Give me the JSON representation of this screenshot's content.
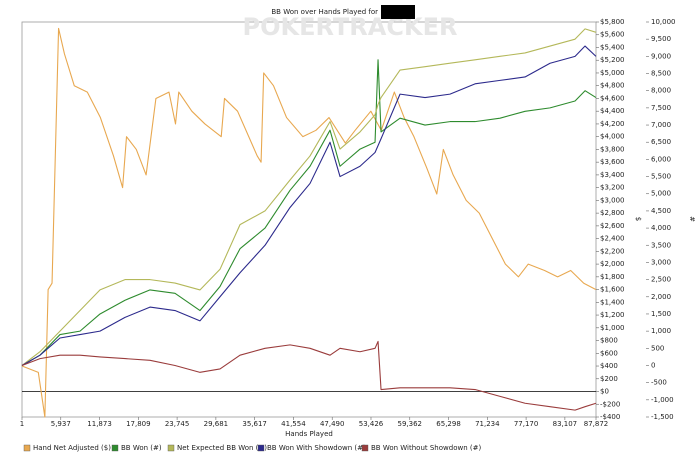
{
  "chart_data": {
    "type": "line",
    "title": "BB Won over Hands Played for",
    "watermark": "POKERTRACKER",
    "x_label": "Hands Played",
    "y_label": "$",
    "y2_label": "#",
    "xlim": [
      1,
      87872
    ],
    "xticks": [
      1,
      {
        "value": 5937,
        "label": "5,937"
      },
      {
        "value": 11873,
        "label": "11,873"
      },
      {
        "value": 17809,
        "label": "17,809"
      },
      {
        "value": 23745,
        "label": "23,745"
      },
      {
        "value": 29681,
        "label": "29,681"
      },
      {
        "value": 35617,
        "label": "35,617"
      },
      {
        "value": 41554,
        "label": "41,554"
      },
      {
        "value": 47490,
        "label": "47,490"
      },
      {
        "value": 53426,
        "label": "53,426"
      },
      {
        "value": 59362,
        "label": "59,362"
      },
      {
        "value": 65298,
        "label": "65,298"
      },
      {
        "value": 71234,
        "label": "71,234"
      },
      {
        "value": 77170,
        "label": "77,170"
      },
      {
        "value": 83107,
        "label": "83,107"
      },
      {
        "value": 87872,
        "label": "87,872"
      }
    ],
    "ylim": [
      -400,
      5800
    ],
    "yticks": [
      {
        "value": -400,
        "label": "-$400"
      },
      {
        "value": -200,
        "label": "-$200"
      },
      {
        "value": 0,
        "label": "$0"
      },
      {
        "value": 200,
        "label": "$200"
      },
      {
        "value": 400,
        "label": "$400"
      },
      {
        "value": 600,
        "label": "$600"
      },
      {
        "value": 800,
        "label": "$800"
      },
      {
        "value": 1000,
        "label": "$1,000"
      },
      {
        "value": 1200,
        "label": "$1,200"
      },
      {
        "value": 1400,
        "label": "$1,400"
      },
      {
        "value": 1600,
        "label": "$1,600"
      },
      {
        "value": 1800,
        "label": "$1,800"
      },
      {
        "value": 2000,
        "label": "$2,000"
      },
      {
        "value": 2200,
        "label": "$2,200"
      },
      {
        "value": 2400,
        "label": "$2,400"
      },
      {
        "value": 2600,
        "label": "$2,600"
      },
      {
        "value": 2800,
        "label": "$2,800"
      },
      {
        "value": 3000,
        "label": "$3,000"
      },
      {
        "value": 3200,
        "label": "$3,200"
      },
      {
        "value": 3400,
        "label": "$3,400"
      },
      {
        "value": 3600,
        "label": "$3,600"
      },
      {
        "value": 3800,
        "label": "$3,800"
      },
      {
        "value": 4000,
        "label": "$4,000"
      },
      {
        "value": 4200,
        "label": "$4,200"
      },
      {
        "value": 4400,
        "label": "$4,400"
      },
      {
        "value": 4600,
        "label": "$4,600"
      },
      {
        "value": 4800,
        "label": "$4,800"
      },
      {
        "value": 5000,
        "label": "$5,000"
      },
      {
        "value": 5200,
        "label": "$5,200"
      },
      {
        "value": 5400,
        "label": "$5,400"
      },
      {
        "value": 5600,
        "label": "$5,600"
      },
      {
        "value": 5800,
        "label": "$5,800"
      }
    ],
    "y2lim": [
      -1500,
      10000
    ],
    "y2ticks": [
      {
        "value": -1500,
        "label": "-1,500"
      },
      {
        "value": -1000,
        "label": "-1,000"
      },
      -500,
      0,
      500,
      {
        "value": 1000,
        "label": "1,000"
      },
      {
        "value": 1500,
        "label": "1,500"
      },
      {
        "value": 2000,
        "label": "2,000"
      },
      {
        "value": 2500,
        "label": "2,500"
      },
      {
        "value": 3000,
        "label": "3,000"
      },
      {
        "value": 3500,
        "label": "3,500"
      },
      {
        "value": 4000,
        "label": "4,000"
      },
      {
        "value": 4500,
        "label": "4,500"
      },
      {
        "value": 5000,
        "label": "5,000"
      },
      {
        "value": 5500,
        "label": "5,500"
      },
      {
        "value": 6000,
        "label": "6,000"
      },
      {
        "value": 6500,
        "label": "6,500"
      },
      {
        "value": 7000,
        "label": "7,000"
      },
      {
        "value": 7500,
        "label": "7,500"
      },
      {
        "value": 8000,
        "label": "8,000"
      },
      {
        "value": 8500,
        "label": "8,500"
      },
      {
        "value": 9000,
        "label": "9,000"
      },
      {
        "value": 9500,
        "label": "9,500"
      },
      {
        "value": 10000,
        "label": "10,000"
      }
    ],
    "grid": false,
    "legend": "bottom",
    "series": [
      {
        "name": "Hand Net Adjusted ($)",
        "color": "#e8a850",
        "axis": "y",
        "x": [
          1,
          2500,
          3500,
          4000,
          4600,
          5600,
          6500,
          8000,
          10000,
          12000,
          14000,
          15400,
          16000,
          17500,
          19000,
          20500,
          22500,
          23500,
          24000,
          26000,
          28000,
          30500,
          31000,
          33000,
          36000,
          36600,
          37000,
          38500,
          40500,
          43000,
          45000,
          47000,
          49500,
          51000,
          53400,
          55000,
          57000,
          58500,
          60000,
          62000,
          63500,
          64500,
          66000,
          68000,
          70000,
          72000,
          74000,
          76000,
          77500,
          80000,
          82000,
          84000,
          86000,
          87872
        ],
        "values": [
          400,
          300,
          -400,
          1600,
          1700,
          5700,
          5300,
          4800,
          4700,
          4300,
          3700,
          3200,
          4000,
          3800,
          3400,
          4600,
          4700,
          4200,
          4700,
          4400,
          4200,
          4000,
          4600,
          4400,
          3700,
          3600,
          5000,
          4800,
          4300,
          4000,
          4100,
          4300,
          3900,
          4100,
          4400,
          4100,
          4700,
          4300,
          4000,
          3500,
          3100,
          3800,
          3400,
          3000,
          2800,
          2400,
          2000,
          1800,
          2000,
          1900,
          1800,
          1900,
          1700,
          1600
        ]
      },
      {
        "name": "BB Won (#)",
        "color": "#2e8b2e",
        "axis": "y2",
        "x": [
          1,
          2757,
          5819,
          8881,
          11943,
          15771,
          19598,
          23426,
          27253,
          30315,
          33377,
          37205,
          41032,
          44094,
          47156,
          48687,
          51749,
          54046,
          54505,
          54964,
          57873,
          61700,
          65528,
          69355,
          73183,
          77010,
          80838,
          84665,
          86196,
          87872
        ],
        "values": [
          0,
          300,
          900,
          1000,
          1500,
          1900,
          2200,
          2100,
          1600,
          2300,
          3400,
          4000,
          5100,
          5800,
          6850,
          5800,
          6300,
          6500,
          8900,
          6800,
          7200,
          7000,
          7100,
          7100,
          7200,
          7400,
          7500,
          7700,
          8000,
          7800
        ]
      },
      {
        "name": "Net Expected BB Won (#)",
        "color": "#b4b85a",
        "axis": "y2",
        "x": [
          1,
          2757,
          5819,
          8881,
          11943,
          15771,
          19598,
          23426,
          27253,
          30315,
          33377,
          37205,
          41032,
          44094,
          47156,
          48687,
          51749,
          54046,
          54505,
          54964,
          57873,
          61700,
          65528,
          69355,
          73183,
          77010,
          80838,
          84665,
          86196,
          87872
        ],
        "values": [
          0,
          400,
          1000,
          1600,
          2200,
          2500,
          2500,
          2400,
          2200,
          2800,
          4100,
          4500,
          5400,
          6100,
          7100,
          6300,
          6800,
          7300,
          7600,
          7800,
          8600,
          8700,
          8800,
          8900,
          9000,
          9100,
          9300,
          9500,
          9800,
          9700
        ]
      },
      {
        "name": "BB Won With Showdown (#)",
        "color": "#2c2a8c",
        "axis": "y2",
        "x": [
          1,
          2757,
          5819,
          8881,
          11943,
          15771,
          19598,
          23426,
          27253,
          30315,
          33377,
          37205,
          41032,
          44094,
          47156,
          48687,
          51749,
          54046,
          54505,
          54964,
          57873,
          61700,
          65528,
          69355,
          73183,
          77010,
          80838,
          84665,
          86196,
          87872
        ],
        "values": [
          0,
          300,
          800,
          900,
          1000,
          1400,
          1700,
          1600,
          1300,
          2000,
          2700,
          3500,
          4600,
          5300,
          6500,
          5500,
          5800,
          6200,
          6400,
          6600,
          7900,
          7800,
          7900,
          8200,
          8300,
          8400,
          8800,
          9000,
          9300,
          9000
        ]
      },
      {
        "name": "BB Won Without Showdown (#)",
        "color": "#9a3c3c",
        "axis": "y2",
        "x": [
          1,
          2757,
          5819,
          8881,
          11943,
          15771,
          19598,
          23426,
          27253,
          30315,
          33377,
          37205,
          41032,
          44094,
          47156,
          48687,
          51749,
          54046,
          54505,
          54964,
          57873,
          61700,
          65528,
          69355,
          73183,
          77010,
          80838,
          84665,
          86196,
          87872
        ],
        "values": [
          0,
          200,
          300,
          300,
          250,
          200,
          150,
          0,
          -200,
          -100,
          300,
          500,
          600,
          500,
          300,
          500,
          400,
          500,
          700,
          -700,
          -650,
          -650,
          -650,
          -700,
          -900,
          -1100,
          -1200,
          -1300,
          -1200,
          -1100
        ]
      }
    ]
  }
}
